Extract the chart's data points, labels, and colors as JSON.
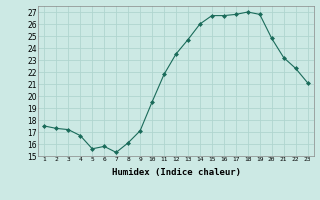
{
  "x": [
    1,
    2,
    3,
    4,
    5,
    6,
    7,
    8,
    9,
    10,
    11,
    12,
    13,
    14,
    15,
    16,
    17,
    18,
    19,
    20,
    21,
    22,
    23
  ],
  "y": [
    17.5,
    17.3,
    17.2,
    16.7,
    15.6,
    15.8,
    15.3,
    16.1,
    17.1,
    19.5,
    21.8,
    23.5,
    24.7,
    26.0,
    26.7,
    26.7,
    26.8,
    27.0,
    26.8,
    24.8,
    23.2,
    22.3,
    21.1
  ],
  "line_color": "#1a6b5a",
  "marker": "D",
  "marker_size": 2.0,
  "bg_color": "#cce9e4",
  "grid_color": "#b0d5cf",
  "xlabel": "Humidex (Indice chaleur)",
  "xlim": [
    0.5,
    23.5
  ],
  "ylim": [
    15,
    27.5
  ],
  "yticks": [
    15,
    16,
    17,
    18,
    19,
    20,
    21,
    22,
    23,
    24,
    25,
    26,
    27
  ],
  "xticks": [
    1,
    2,
    3,
    4,
    5,
    6,
    7,
    8,
    9,
    10,
    11,
    12,
    13,
    14,
    15,
    16,
    17,
    18,
    19,
    20,
    21,
    22,
    23
  ]
}
